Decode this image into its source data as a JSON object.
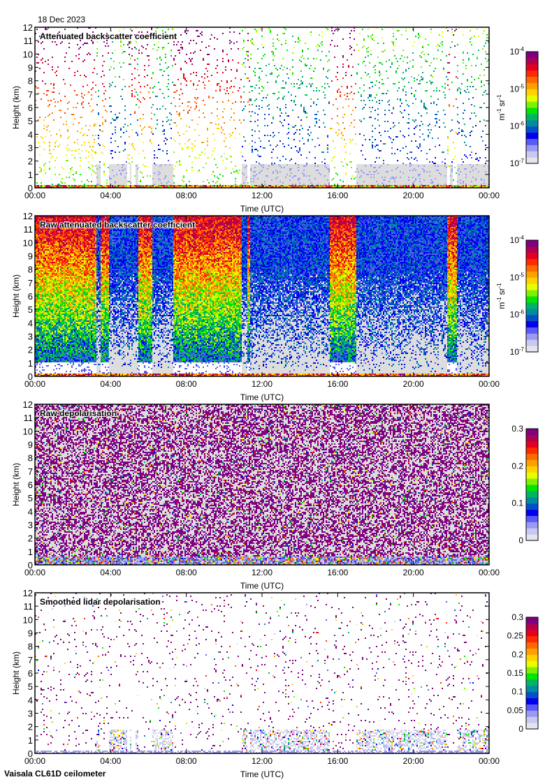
{
  "header": {
    "date": "18 Dec 2023"
  },
  "footer": {
    "instrument": "Vaisala CL61D ceilometer"
  },
  "colors": {
    "clear": "#ffffff",
    "noise": "#dddddd",
    "palette": [
      "#e4e4ee",
      "#c8c8f0",
      "#9a9af5",
      "#5a5af8",
      "#0000f0",
      "#0050c8",
      "#008ca0",
      "#00b464",
      "#00e600",
      "#80f000",
      "#e6ff00",
      "#ffd200",
      "#ffa000",
      "#ff6a00",
      "#ff2a00",
      "#e60020",
      "#b00050",
      "#800080"
    ]
  },
  "chart_data": [
    {
      "type": "heatmap",
      "title": "Attenuated backscatter coefficient",
      "xlabel": "Time (UTC)",
      "ylabel": "Height (km)",
      "xlim": [
        0,
        24
      ],
      "ylim": [
        0,
        12
      ],
      "xticks": [
        "00:00",
        "04:00",
        "08:00",
        "12:00",
        "16:00",
        "20:00",
        "00:00"
      ],
      "yticks": [
        "0",
        "1",
        "2",
        "3",
        "4",
        "5",
        "6",
        "7",
        "8",
        "9",
        "10",
        "11",
        "12"
      ],
      "colorbar": {
        "scale": "log",
        "range": [
          1e-07,
          0.0001
        ],
        "ticks": [
          "10",
          "10",
          "10",
          "10"
        ],
        "tick_exponents": [
          "-7",
          "-6",
          "-5",
          "-4"
        ],
        "unit_base": [
          "m",
          "sr"
        ],
        "unit_exp": [
          "-1",
          "-1"
        ]
      },
      "mode": "sparse",
      "noise_segments_h": [
        [
          3.25,
          3.5
        ],
        [
          3.9,
          4.85
        ],
        [
          5.0,
          5.1
        ],
        [
          5.3,
          5.45
        ],
        [
          6.2,
          7.3
        ],
        [
          10.95,
          11.2
        ],
        [
          11.35,
          15.6
        ],
        [
          17.0,
          21.8
        ],
        [
          21.95,
          22.05
        ],
        [
          22.3,
          24.0
        ]
      ],
      "noise_top_km": 1.8
    },
    {
      "type": "heatmap",
      "title": "Raw attenuated backscatter coefficient",
      "xlabel": "Time (UTC)",
      "ylabel": "Height (km)",
      "xlim": [
        0,
        24
      ],
      "ylim": [
        0,
        12
      ],
      "xticks": [
        "00:00",
        "04:00",
        "08:00",
        "12:00",
        "16:00",
        "20:00",
        "00:00"
      ],
      "yticks": [
        "0",
        "1",
        "2",
        "3",
        "4",
        "5",
        "6",
        "7",
        "8",
        "9",
        "10",
        "11",
        "12"
      ],
      "colorbar": {
        "scale": "log",
        "range": [
          1e-07,
          0.0001
        ],
        "ticks": [
          "10",
          "10",
          "10",
          "10"
        ],
        "tick_exponents": [
          "-7",
          "-6",
          "-5",
          "-4"
        ],
        "unit_base": [
          "m",
          "sr"
        ],
        "unit_exp": [
          "-1",
          "-1"
        ]
      },
      "mode": "dense",
      "high_signal_segments_h": [
        [
          0,
          3.25
        ],
        [
          3.5,
          3.9
        ],
        [
          5.45,
          6.2
        ],
        [
          7.3,
          10.95
        ],
        [
          11.2,
          11.35
        ],
        [
          15.6,
          17.0
        ],
        [
          21.8,
          22.3
        ]
      ]
    },
    {
      "type": "heatmap",
      "title": "Raw depolarisation",
      "xlabel": "Time (UTC)",
      "ylabel": "Height (km)",
      "xlim": [
        0,
        24
      ],
      "ylim": [
        0,
        12
      ],
      "xticks": [
        "00:00",
        "04:00",
        "08:00",
        "12:00",
        "16:00",
        "20:00",
        "00:00"
      ],
      "yticks": [
        "0",
        "1",
        "2",
        "3",
        "4",
        "5",
        "6",
        "7",
        "8",
        "9",
        "10",
        "11",
        "12"
      ],
      "colorbar": {
        "scale": "linear",
        "range": [
          0,
          0.3
        ],
        "ticks": [
          "0",
          "0.1",
          "0.2",
          "0.3"
        ]
      },
      "mode": "noise"
    },
    {
      "type": "heatmap",
      "title": "Smoothed lidar depolarisation",
      "xlabel": "Time (UTC)",
      "ylabel": "Height (km)",
      "xlim": [
        0,
        24
      ],
      "ylim": [
        0,
        12
      ],
      "xticks": [
        "00:00",
        "04:00",
        "08:00",
        "12:00",
        "16:00",
        "20:00",
        "00:00"
      ],
      "yticks": [
        "0",
        "1",
        "2",
        "3",
        "4",
        "5",
        "6",
        "7",
        "8",
        "9",
        "10",
        "11",
        "12"
      ],
      "colorbar": {
        "scale": "linear",
        "range": [
          0,
          0.3
        ],
        "ticks": [
          "0",
          "0.05",
          "0.1",
          "0.15",
          "0.2",
          "0.25",
          "0.3"
        ]
      },
      "mode": "smoothdep",
      "noise_segments_h": [
        [
          3.25,
          3.5
        ],
        [
          3.9,
          4.85
        ],
        [
          5.0,
          5.1
        ],
        [
          5.3,
          5.45
        ],
        [
          6.2,
          7.3
        ],
        [
          10.95,
          11.2
        ],
        [
          11.35,
          15.6
        ],
        [
          17.0,
          21.8
        ],
        [
          22.3,
          24.0
        ]
      ]
    }
  ]
}
